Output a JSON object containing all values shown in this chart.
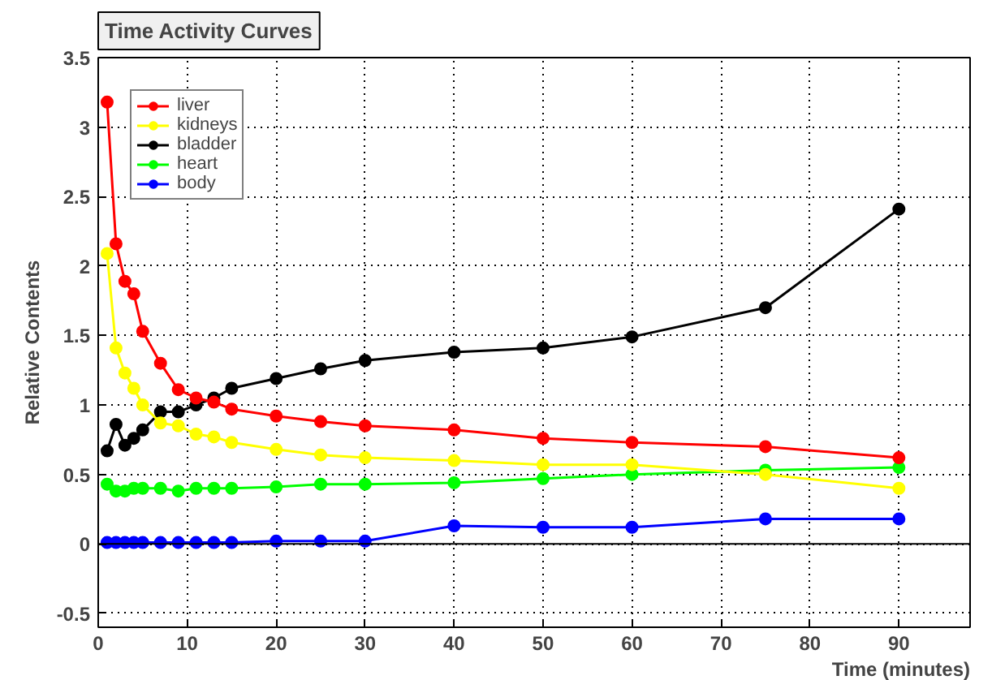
{
  "chart_data": {
    "type": "line",
    "title": "Time Activity Curves",
    "xlabel": "Time (minutes)",
    "ylabel": "Relative Contents",
    "x": [
      1,
      2,
      3,
      4,
      5,
      7,
      9,
      11,
      13,
      15,
      20,
      25,
      30,
      40,
      50,
      60,
      75,
      90
    ],
    "series": [
      {
        "name": "liver",
        "color": "#ff0000",
        "values": [
          3.18,
          2.16,
          1.89,
          1.8,
          1.53,
          1.3,
          1.11,
          1.05,
          1.02,
          0.97,
          0.92,
          0.88,
          0.85,
          0.82,
          0.76,
          0.73,
          0.7,
          0.62
        ]
      },
      {
        "name": "kidneys",
        "color": "#ffff00",
        "values": [
          2.09,
          1.41,
          1.23,
          1.12,
          1.0,
          0.87,
          0.85,
          0.79,
          0.77,
          0.73,
          0.68,
          0.64,
          0.62,
          0.6,
          0.57,
          0.57,
          0.5,
          0.4
        ]
      },
      {
        "name": "bladder",
        "color": "#000000",
        "values": [
          0.67,
          0.86,
          0.71,
          0.76,
          0.82,
          0.95,
          0.95,
          1.0,
          1.05,
          1.12,
          1.19,
          1.26,
          1.32,
          1.38,
          1.41,
          1.49,
          1.7,
          2.41
        ]
      },
      {
        "name": "heart",
        "color": "#00ff00",
        "values": [
          0.43,
          0.38,
          0.38,
          0.4,
          0.4,
          0.4,
          0.38,
          0.4,
          0.4,
          0.4,
          0.41,
          0.43,
          0.43,
          0.44,
          0.47,
          0.5,
          0.53,
          0.55
        ]
      },
      {
        "name": "body",
        "color": "#0000ff",
        "values": [
          0.01,
          0.01,
          0.01,
          0.01,
          0.01,
          0.01,
          0.01,
          0.01,
          0.01,
          0.01,
          0.02,
          0.02,
          0.02,
          0.13,
          0.12,
          0.12,
          0.18,
          0.18
        ]
      }
    ],
    "xlim": [
      0,
      98
    ],
    "ylim": [
      -0.6,
      3.5
    ],
    "xticks": [
      0,
      10,
      20,
      30,
      40,
      50,
      60,
      70,
      80,
      90
    ],
    "yticks": [
      -0.5,
      0,
      0.5,
      1,
      1.5,
      2,
      2.5,
      3,
      3.5
    ],
    "ref_lines": [
      {
        "axis": "y",
        "value": 0,
        "color": "#000000"
      }
    ],
    "grid": true,
    "legend": "top left",
    "marker": "circle",
    "line_style": "solid"
  }
}
